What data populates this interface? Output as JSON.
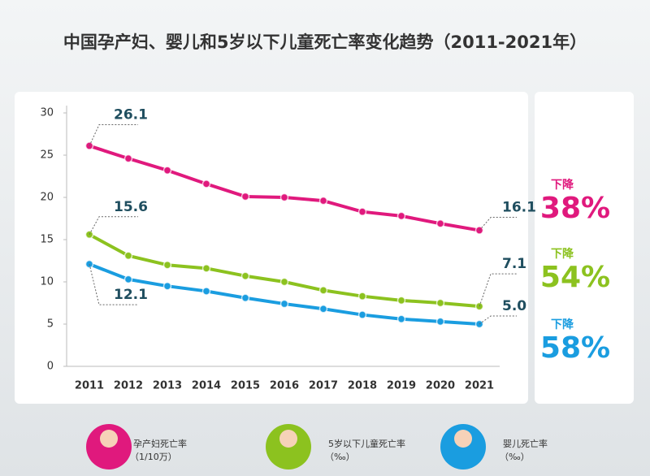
{
  "chart_data": {
    "type": "line",
    "title": "中国孕产妇、婴儿和5岁以下儿童死亡率变化趋势（2011-2021年）",
    "categories": [
      "2011",
      "2012",
      "2013",
      "2014",
      "2015",
      "2016",
      "2017",
      "2018",
      "2019",
      "2020",
      "2021"
    ],
    "series": [
      {
        "name": "孕产妇死亡率",
        "unit": "（1/10万）",
        "color": "#e0197d",
        "values": [
          26.1,
          24.6,
          23.2,
          21.6,
          20.1,
          20.0,
          19.6,
          18.3,
          17.8,
          16.9,
          16.1
        ],
        "value_labels": [
          "26.1",
          null,
          null,
          null,
          null,
          null,
          null,
          null,
          null,
          null,
          "16.1"
        ]
      },
      {
        "name": "5岁以下儿童死亡率",
        "unit": "（‰）",
        "color": "#8cc21f",
        "values": [
          15.6,
          13.1,
          12.0,
          11.6,
          10.7,
          10.0,
          9.0,
          8.3,
          7.8,
          7.5,
          7.1
        ],
        "value_labels": [
          "15.6",
          null,
          null,
          null,
          null,
          null,
          null,
          null,
          null,
          null,
          "7.1"
        ]
      },
      {
        "name": "婴儿死亡率",
        "unit": "（‰）",
        "color": "#1a9de0",
        "values": [
          12.1,
          10.3,
          9.5,
          8.9,
          8.1,
          7.4,
          6.8,
          6.1,
          5.6,
          5.3,
          5.0
        ],
        "value_labels": [
          "12.1",
          null,
          null,
          null,
          null,
          null,
          null,
          null,
          null,
          null,
          "5.0"
        ]
      }
    ],
    "annotations": [
      {
        "label": "下降",
        "value": "38%"
      },
      {
        "label": "下降",
        "value": "54%"
      },
      {
        "label": "下降",
        "value": "58%"
      }
    ],
    "ylim": [
      0,
      30
    ],
    "yticks": [
      0,
      5,
      10,
      15,
      20,
      25,
      30
    ],
    "grid": false
  }
}
